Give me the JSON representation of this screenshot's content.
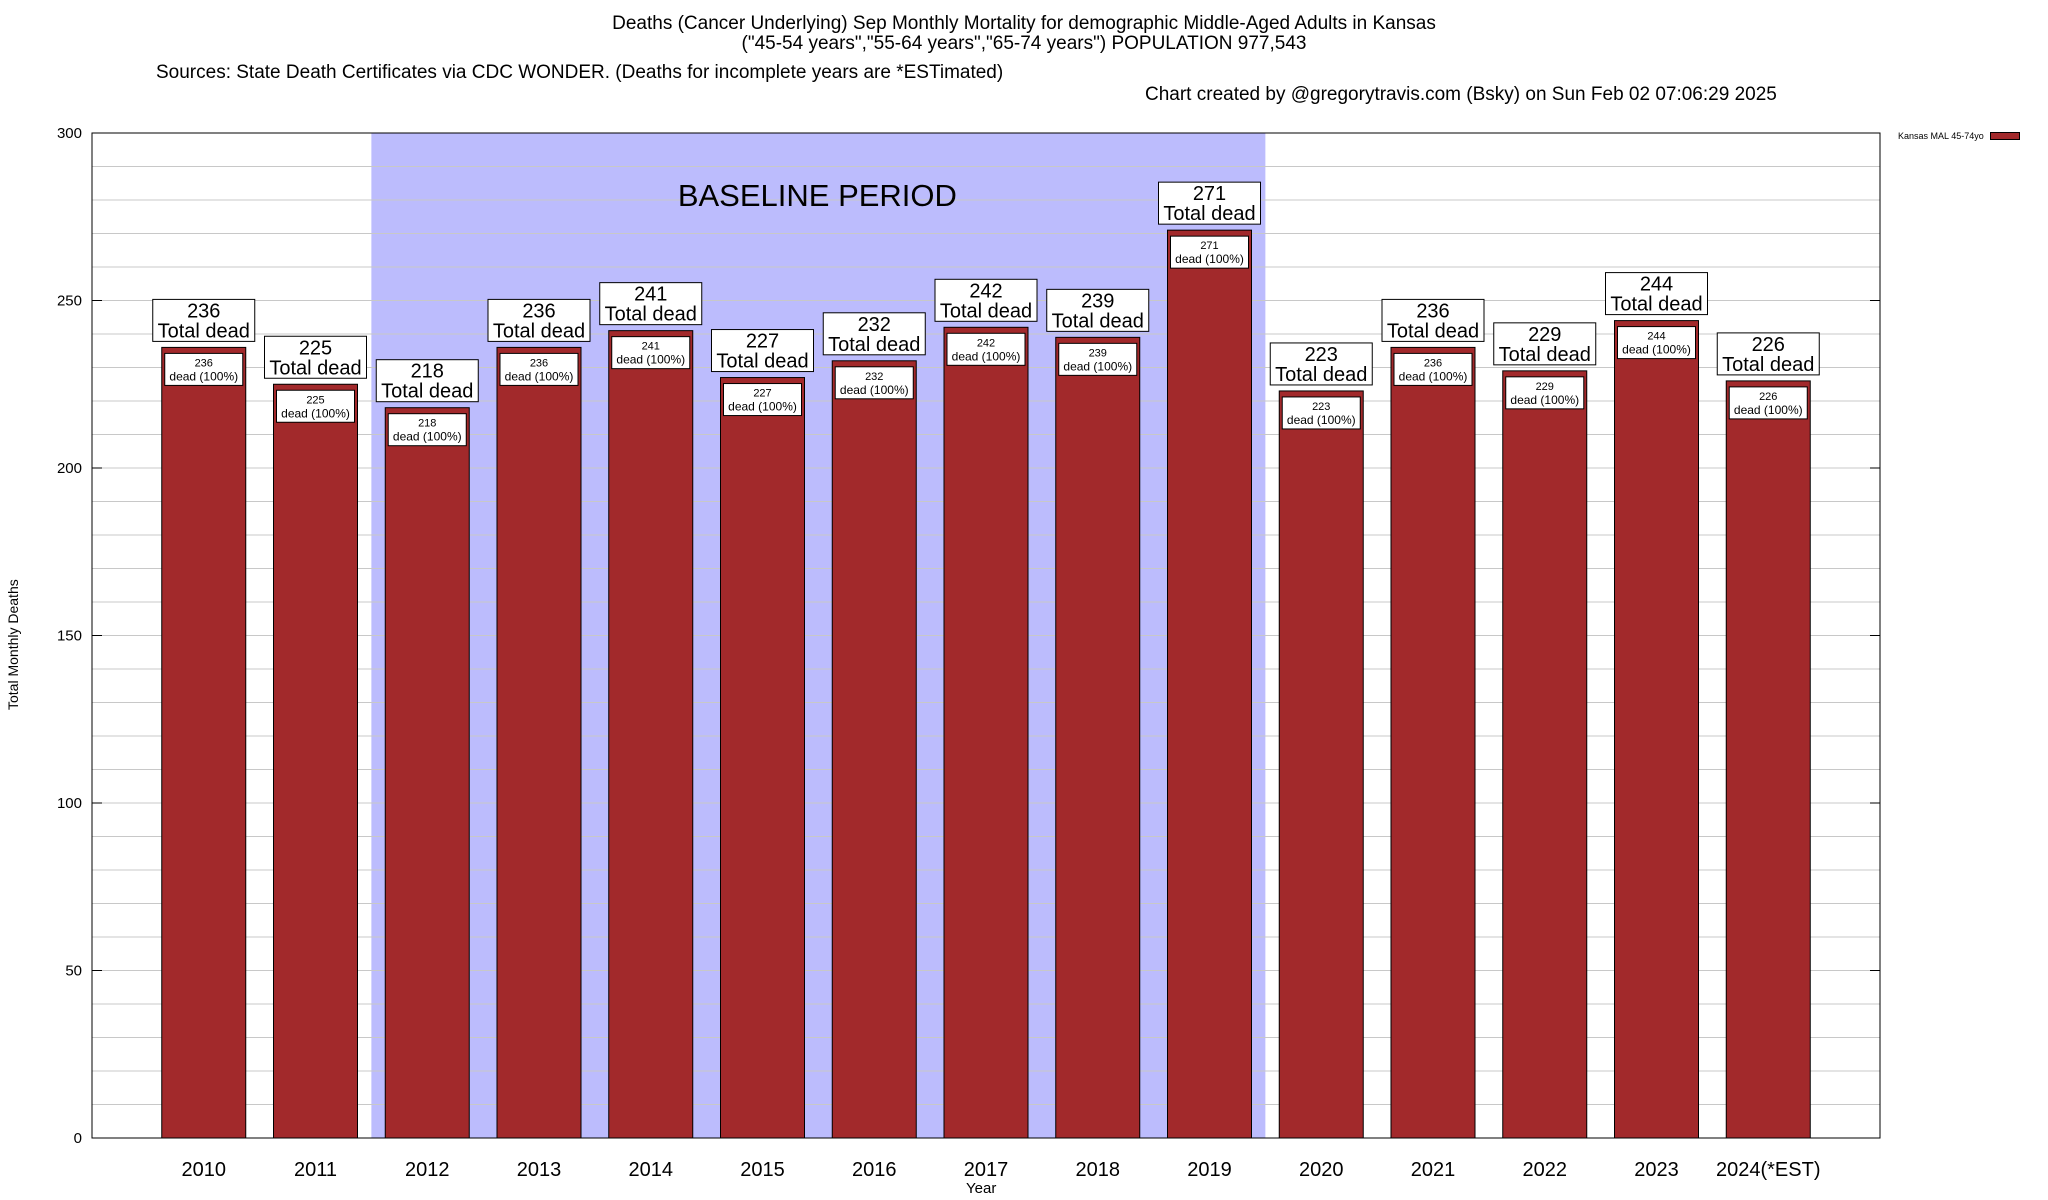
{
  "chart_data": {
    "type": "bar",
    "title_line1": "Deaths (Cancer Underlying) Sep Monthly Mortality for demographic Middle-Aged Adults in Kansas",
    "title_line2": "(\"45-54 years\",\"55-64 years\",\"65-74 years\") POPULATION 977,543",
    "title_line3_left": "Sources: State Death Certificates via CDC WONDER. (Deaths for incomplete years are *ESTimated)",
    "title_line3_right": "Chart created by @gregorytravis.com (Bsky) on Sun Feb 02 07:06:29 2025",
    "xlabel": "Year",
    "ylabel": "Total Monthly Deaths",
    "ylim": [
      0,
      300
    ],
    "yticks": [
      0,
      50,
      100,
      150,
      200,
      250,
      300
    ],
    "grid": true,
    "legend": {
      "label": "Kansas MAL 45-74yo",
      "position": "top-right",
      "color": "#a2292b"
    },
    "baseline": {
      "label": "BASELINE PERIOD",
      "start": "2012",
      "end": "2019",
      "color": "#bcbcfd"
    },
    "categories": [
      "2010",
      "2011",
      "2012",
      "2013",
      "2014",
      "2015",
      "2016",
      "2017",
      "2018",
      "2019",
      "2020",
      "2021",
      "2022",
      "2023",
      "2024(*EST)"
    ],
    "series": [
      {
        "name": "Kansas MAL 45-74yo",
        "color": "#a2292b",
        "values": [
          236,
          225,
          218,
          236,
          241,
          227,
          232,
          242,
          239,
          271,
          223,
          236,
          229,
          244,
          226
        ]
      }
    ],
    "total_label_suffix": "Total dead",
    "inner_label_suffix": "dead (100%)"
  }
}
